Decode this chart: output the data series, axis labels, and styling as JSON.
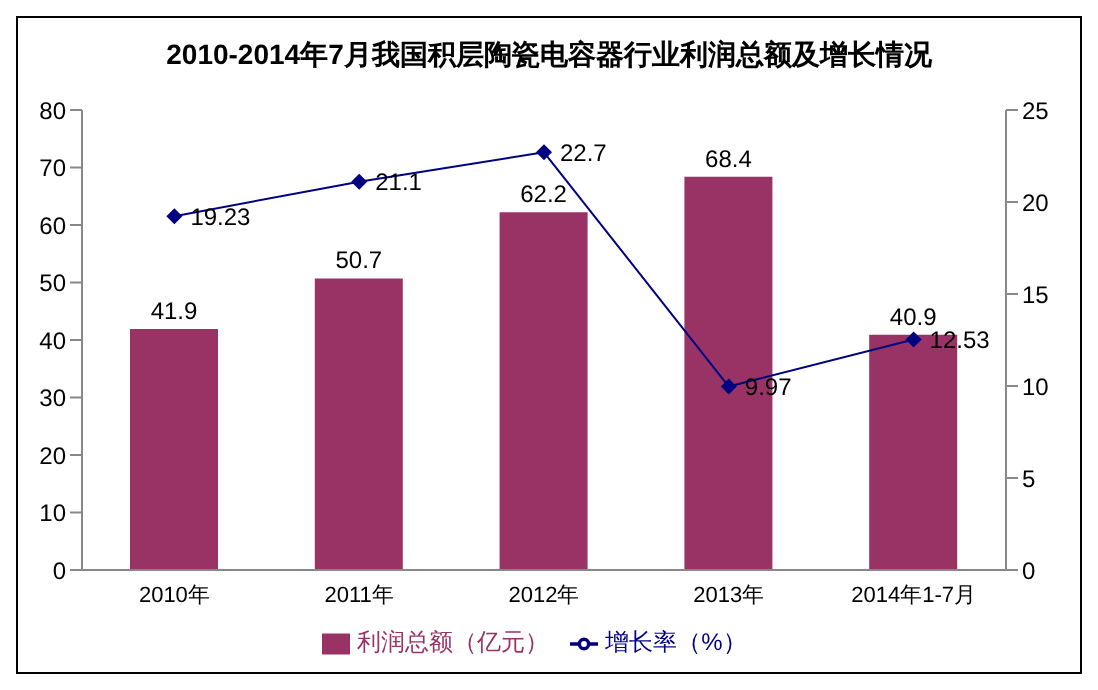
{
  "chart_data": {
    "type": "bar",
    "title": "2010-2014年7月我国积层陶瓷电容器行业利润总额及增长情况",
    "categories": [
      "2010年",
      "2011年",
      "2012年",
      "2013年",
      "2014年1-7月"
    ],
    "series": [
      {
        "name": "利润总额（亿元）",
        "color": "#993366",
        "values": [
          41.9,
          50.7,
          62.2,
          68.4,
          40.9
        ]
      },
      {
        "name": "增长率（%）",
        "type": "line",
        "axis": "y2",
        "color": "#000080",
        "values": [
          19.23,
          21.1,
          22.7,
          9.97,
          12.53
        ],
        "marker": "diamond"
      }
    ],
    "ylim": [
      0,
      80
    ],
    "yticks": [
      0,
      10,
      20,
      30,
      40,
      50,
      60,
      70,
      80
    ],
    "y2lim": [
      0,
      25
    ],
    "y2ticks": [
      0,
      5,
      10,
      15,
      20,
      25
    ],
    "data_labels": true,
    "grid": false,
    "legend": "bottom"
  }
}
